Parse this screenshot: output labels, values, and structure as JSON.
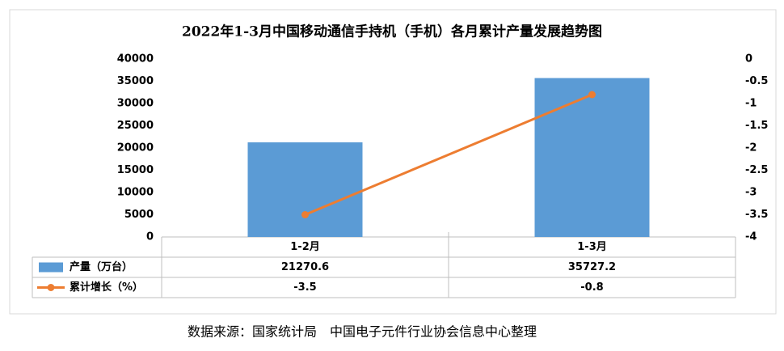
{
  "chart_data": {
    "type": "bar_line",
    "title": "2022年1-3月中国移动通信手持机（手机）各月累计产量发展趋势图",
    "categories": [
      "1-2月",
      "1-3月"
    ],
    "series": [
      {
        "name": "产量（万台）",
        "type": "bar",
        "color": "#5b9bd5",
        "values": [
          21270.6,
          35727.2
        ]
      },
      {
        "name": "累计增长（%）",
        "type": "line",
        "color": "#ed7d31",
        "axis": "y2",
        "values": [
          -3.5,
          -0.8
        ]
      }
    ],
    "ylim": [
      0,
      40000
    ],
    "yticks": [
      0,
      5000,
      10000,
      15000,
      20000,
      25000,
      30000,
      35000,
      40000
    ],
    "y2lim": [
      -4,
      0
    ],
    "y2ticks": [
      0,
      -0.5,
      -1,
      -1.5,
      -2,
      -2.5,
      -3,
      -3.5,
      -4
    ],
    "data_table": true,
    "source": "数据来源：国家统计局　中国电子元件行业协会信息中心整理"
  }
}
